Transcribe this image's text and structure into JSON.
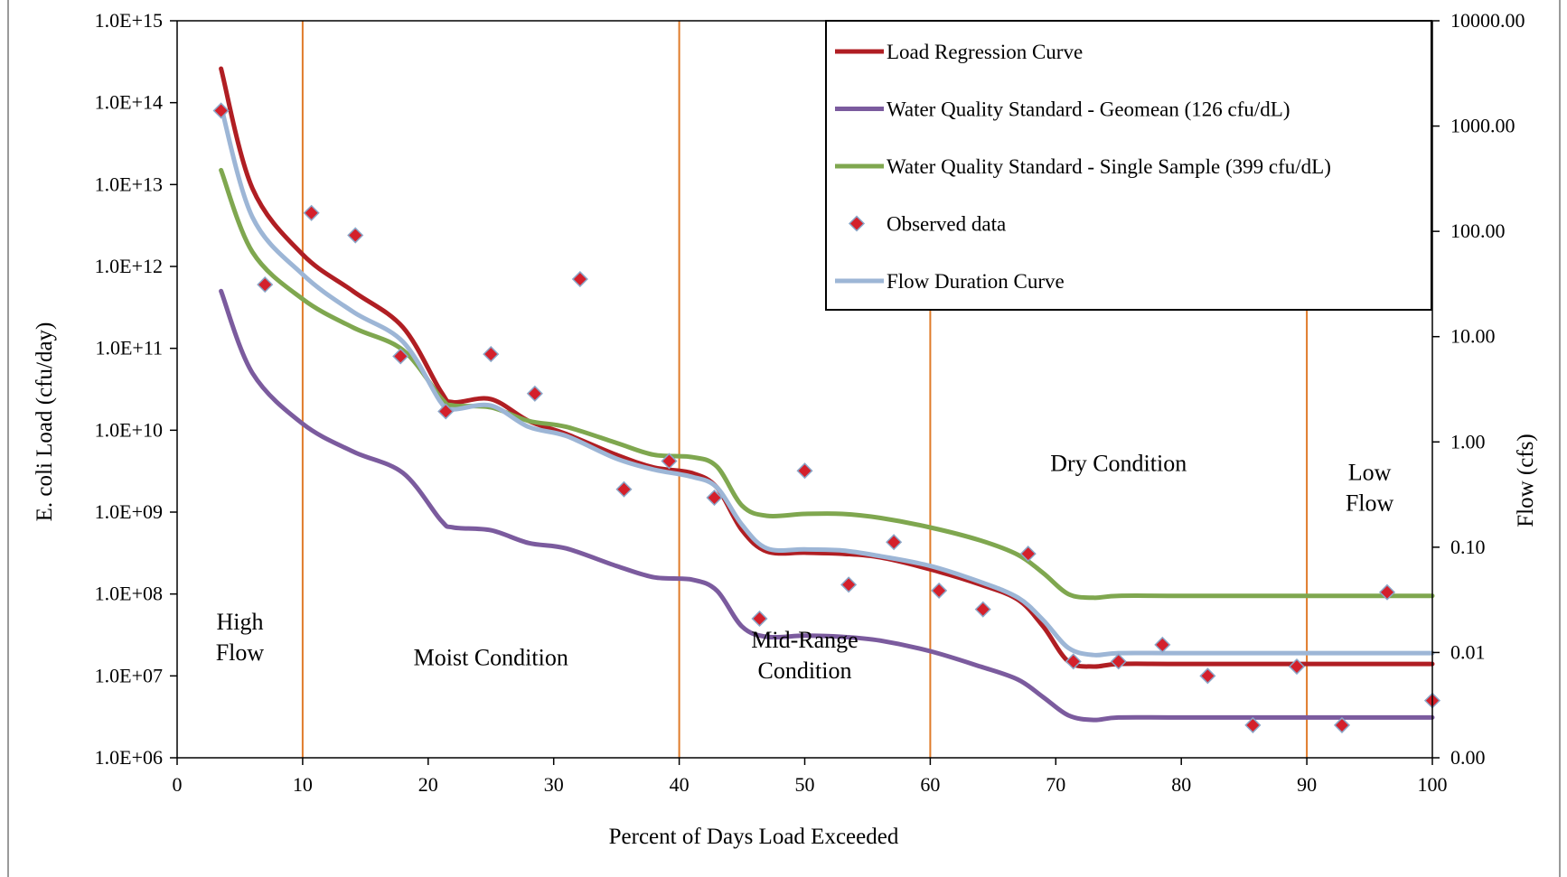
{
  "chart_data": {
    "type": "line",
    "title": "",
    "xlabel": "Percent of Days Load Exceeded",
    "ylabel": "E. coli Load (cfu/day)",
    "y2label": "Flow (cfs)",
    "xlim": [
      0,
      100
    ],
    "x_ticks": [
      0,
      10,
      20,
      30,
      40,
      50,
      60,
      70,
      80,
      90,
      100
    ],
    "y_scale": "log",
    "ylim": [
      1000000,
      1000000000000000
    ],
    "y_tick_labels": [
      "1.0E+06",
      "1.0E+07",
      "1.0E+08",
      "1.0E+09",
      "1.0E+10",
      "1.0E+11",
      "1.0E+12",
      "1.0E+13",
      "1.0E+14",
      "1.0E+15"
    ],
    "y2_scale": "log",
    "y2_tick_labels": [
      "0.00",
      "0.01",
      "0.10",
      "1.00",
      "10.00",
      "100.00",
      "1000.00",
      "10000.00"
    ],
    "grid": false,
    "legend_position": "top-right",
    "zone_boundaries": [
      10,
      40,
      60,
      90
    ],
    "zone_color": "#E07B2A",
    "zones": [
      {
        "lines": [
          "High",
          "Flow"
        ],
        "x": 5,
        "y": 30000000
      },
      {
        "lines": [
          "Moist Condition"
        ],
        "x": 25,
        "y": 17000000
      },
      {
        "lines": [
          "Mid-Range",
          "Condition"
        ],
        "x": 50,
        "y": 18000000
      },
      {
        "lines": [
          "Dry Condition"
        ],
        "x": 75,
        "y": 4000000000
      },
      {
        "lines": [
          "Low",
          "Flow"
        ],
        "x": 95,
        "y": 2000000000
      }
    ],
    "series": [
      {
        "name": "Load Regression Curve",
        "color": "#B01E23",
        "kind": "line",
        "x": [
          3.5,
          6,
          10,
          14,
          18,
          21,
          22,
          25,
          28,
          31,
          35,
          38,
          41,
          43,
          45,
          47,
          50,
          53,
          56,
          60,
          64,
          67,
          69,
          71,
          73,
          75,
          80,
          90,
          100
        ],
        "y": [
          260000000000000,
          9000000000000,
          1400000000000,
          500000000000,
          180000000000,
          30000000000,
          22000000000,
          24000000000,
          13000000000,
          9000000000,
          5000000000,
          3500000000,
          3000000000,
          2000000000,
          600000000,
          330000000,
          320000000,
          310000000,
          280000000,
          200000000,
          130000000,
          85000000,
          40000000,
          15000000,
          13000000,
          14000000,
          14000000,
          14000000,
          14000000
        ]
      },
      {
        "name": "Water Quality Standard - Geomean (126 cfu/dL)",
        "color": "#7B5B9E",
        "kind": "line",
        "x": [
          3.5,
          6,
          10,
          14,
          18,
          21,
          22,
          25,
          28,
          31,
          35,
          38,
          41,
          43,
          45,
          47,
          50,
          53,
          56,
          60,
          64,
          67,
          69,
          71,
          73,
          75,
          80,
          90,
          100
        ],
        "y": [
          500000000000,
          50000000000,
          12000000000,
          5500000000,
          3000000000,
          800000000,
          650000000,
          600000000,
          420000000,
          360000000,
          220000000,
          160000000,
          150000000,
          110000000,
          40000000,
          30000000,
          31000000,
          30000000,
          27000000,
          20000000,
          13000000,
          9000000,
          5500000,
          3300000,
          2900000,
          3100000,
          3100000,
          3100000,
          3100000
        ]
      },
      {
        "name": "Water Quality Standard - Single Sample (399 cfu/dL)",
        "color": "#7FA74F",
        "kind": "line",
        "x": [
          3.5,
          6,
          10,
          14,
          18,
          21,
          22,
          25,
          28,
          31,
          35,
          38,
          41,
          43,
          45,
          47,
          50,
          53,
          56,
          60,
          64,
          67,
          69,
          71,
          73,
          75,
          80,
          90,
          100
        ],
        "y": [
          15000000000000,
          1500000000000,
          400000000000,
          180000000000,
          95000000000,
          25000000000,
          20000000000,
          19000000000,
          13000000000,
          11000000000,
          7000000000,
          5000000000,
          4700000000,
          3600000000,
          1200000000,
          900000000,
          950000000,
          950000000,
          850000000,
          650000000,
          450000000,
          300000000,
          180000000,
          100000000,
          90000000,
          95000000,
          95000000,
          95000000,
          95000000
        ]
      },
      {
        "name": "Flow Duration Curve",
        "color": "#9DB6D6",
        "kind": "line",
        "x": [
          3.5,
          6,
          10,
          14,
          18,
          21,
          22,
          25,
          28,
          31,
          35,
          38,
          41,
          43,
          45,
          47,
          50,
          53,
          56,
          60,
          64,
          67,
          69,
          71,
          73,
          75,
          80,
          90,
          100
        ],
        "y": [
          90000000000000,
          4000000000000,
          800000000000,
          280000000000,
          120000000000,
          22000000000,
          18000000000,
          20000000000,
          11000000000,
          8500000000,
          4500000000,
          3300000000,
          2700000000,
          2000000000,
          700000000,
          360000000,
          350000000,
          340000000,
          290000000,
          220000000,
          140000000,
          90000000,
          48000000,
          22000000,
          18000000,
          19000000,
          19000000,
          19000000,
          19000000
        ]
      },
      {
        "name": "Observed data",
        "color": "#D4202B",
        "kind": "marker",
        "x": [
          3.5,
          7,
          10.7,
          14.2,
          17.8,
          21.4,
          25,
          28.5,
          32.1,
          35.6,
          39.2,
          42.8,
          46.4,
          50,
          53.5,
          57.1,
          60.7,
          64.2,
          67.8,
          71.4,
          75,
          78.5,
          82.1,
          85.7,
          89.2,
          92.8,
          96.4,
          100
        ],
        "y": [
          80000000000000,
          600000000000,
          4500000000000,
          2400000000000,
          80000000000,
          17000000000,
          85000000000,
          28000000000,
          700000000000,
          1900000000,
          4200000000,
          1500000000,
          50000000,
          3200000000,
          130000000,
          430000000,
          110000000,
          65000000,
          310000000,
          15000000,
          15000000,
          24000000,
          10000000,
          2500000,
          13000000,
          2500000,
          105000000,
          5000000
        ]
      }
    ],
    "legend_order": [
      0,
      1,
      2,
      4,
      3
    ]
  }
}
